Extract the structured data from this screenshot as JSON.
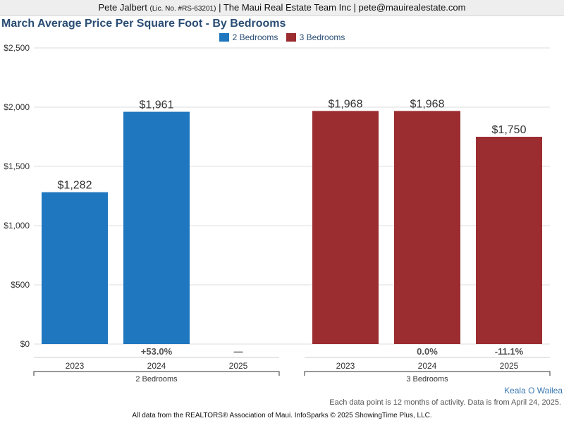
{
  "header": {
    "agent_name": "Pete Jalbert",
    "license": "(Lic. No. #RS-63201)",
    "rest": "| The Maui Real Estate Team Inc | pete@mauirealestate.com"
  },
  "footer": {
    "region": "Keala O Wailea",
    "note": "Each data point is 12 months of activity. Data is from April 24, 2025.",
    "source": "All data from the REALTORS® Association of Maui. InfoSparks © 2025 ShowingTime Plus, LLC."
  },
  "chart_data": {
    "type": "bar",
    "title": "March Average Price Per Square Foot - By Bedrooms",
    "ylim": [
      0,
      2500
    ],
    "y_ticks": [
      "$0",
      "$500",
      "$1,000",
      "$1,500",
      "$2,000",
      "$2,500"
    ],
    "groups": [
      {
        "name": "2 Bedrooms",
        "color": "#1f77bf",
        "categories": [
          "2023",
          "2024",
          "2025"
        ],
        "values": [
          1282,
          1961,
          null
        ],
        "value_labels": [
          "$1,282",
          "$1,961",
          ""
        ],
        "changes": [
          "",
          "+53.0%",
          "—"
        ]
      },
      {
        "name": "3 Bedrooms",
        "color": "#9b2d30",
        "categories": [
          "2023",
          "2024",
          "2025"
        ],
        "values": [
          1968,
          1968,
          1750
        ],
        "value_labels": [
          "$1,968",
          "$1,968",
          "$1,750"
        ],
        "changes": [
          "",
          "0.0%",
          "-11.1%"
        ]
      }
    ]
  }
}
